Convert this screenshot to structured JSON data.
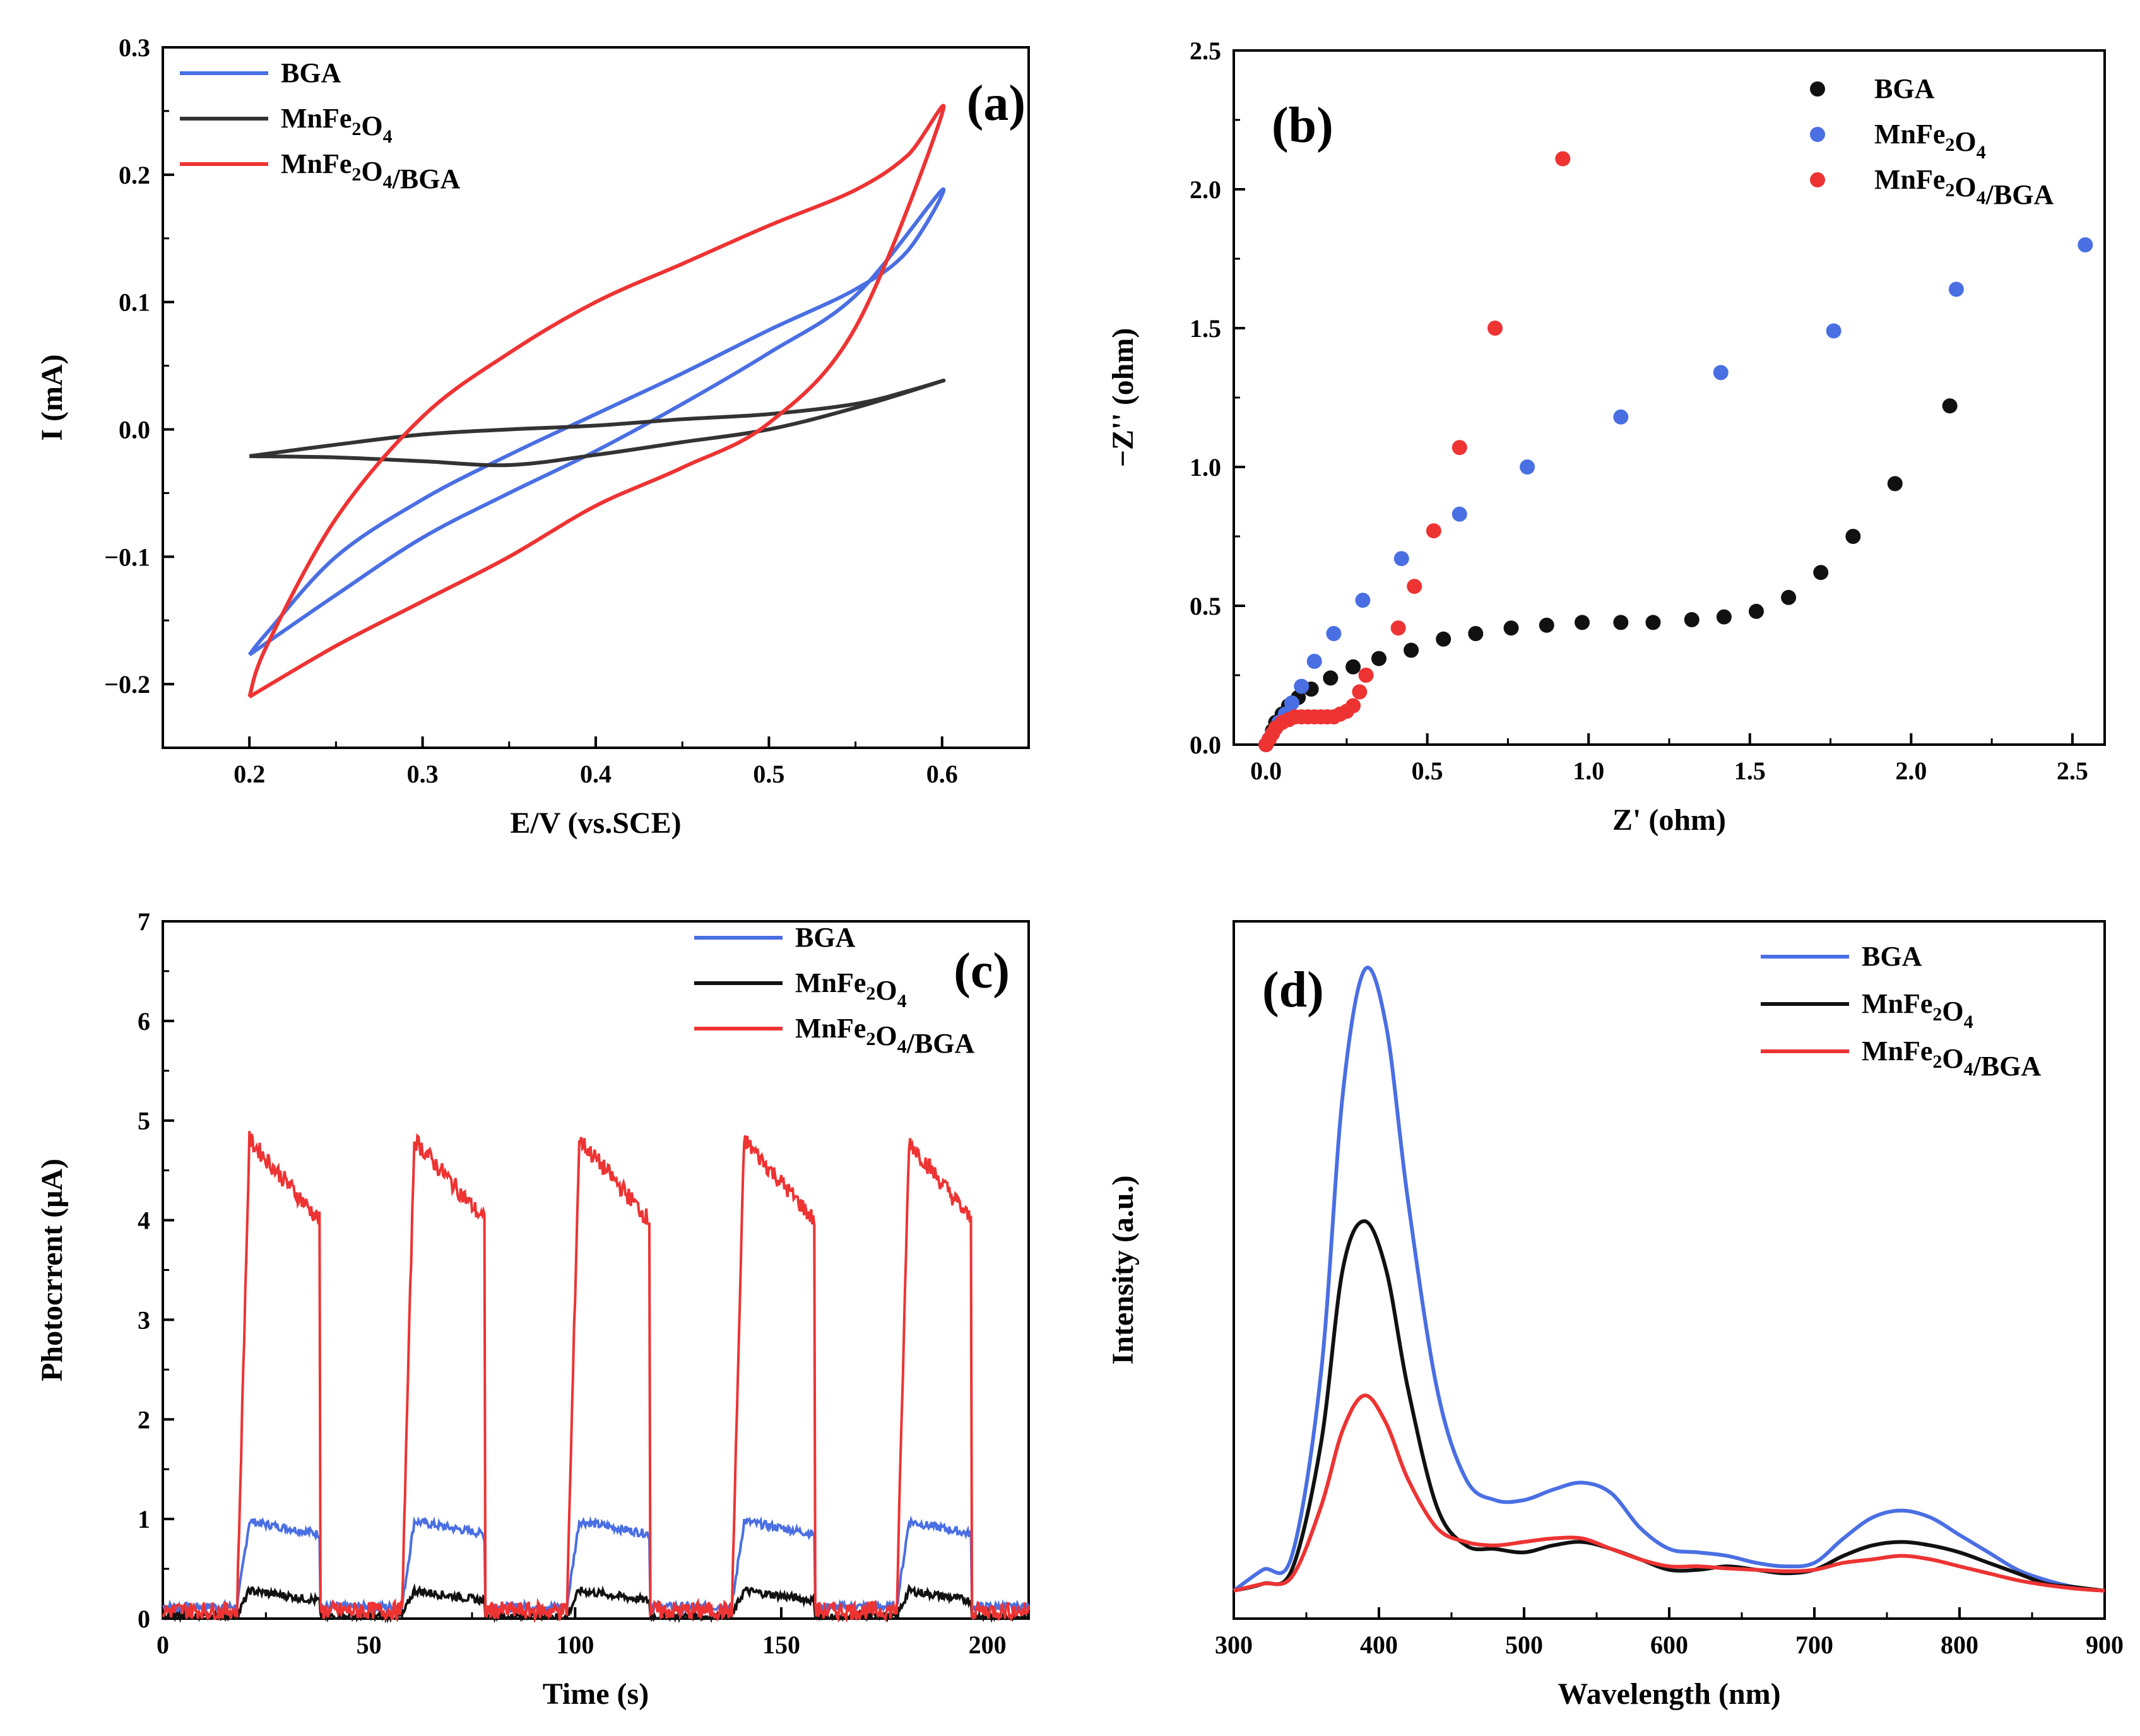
{
  "chart_data": [
    {
      "id": "a",
      "type": "line",
      "panel_label": "(a)",
      "xlabel": "E/V (vs.SCE)",
      "ylabel": "I (mA)",
      "xlim": [
        0.15,
        0.65
      ],
      "ylim": [
        -0.25,
        0.3
      ],
      "xticks": [
        0.2,
        0.3,
        0.4,
        0.5,
        0.6
      ],
      "xtick_labels": [
        "0.2",
        "0.3",
        "0.4",
        "0.5",
        "0.6"
      ],
      "yticks": [
        -0.2,
        -0.1,
        0.0,
        0.1,
        0.2,
        0.3
      ],
      "ytick_labels": [
        "−0.2",
        "−0.1",
        "0.0",
        "0.1",
        "0.2",
        "0.3"
      ],
      "legend": [
        {
          "label": "BGA",
          "color": "#4a6fe3"
        },
        {
          "label": "MnFe₂O₄",
          "color": "#333333"
        },
        {
          "label": "MnFe₂O₄/BGA",
          "color": "#ee3333"
        }
      ],
      "series": [
        {
          "name": "BGA",
          "color": "#4a6fe3",
          "x": [
            0.2,
            0.25,
            0.3,
            0.35,
            0.4,
            0.45,
            0.5,
            0.55,
            0.6,
            0.58,
            0.55,
            0.5,
            0.45,
            0.4,
            0.35,
            0.3,
            0.25,
            0.21,
            0.2
          ],
          "y": [
            -0.177,
            -0.13,
            -0.085,
            -0.05,
            -0.017,
            0.02,
            0.06,
            0.105,
            0.188,
            0.14,
            0.11,
            0.078,
            0.044,
            0.012,
            -0.02,
            -0.055,
            -0.1,
            -0.16,
            -0.177
          ]
        },
        {
          "name": "MnFe₂O₄",
          "color": "#333333",
          "x": [
            0.2,
            0.25,
            0.3,
            0.35,
            0.4,
            0.45,
            0.5,
            0.55,
            0.6,
            0.58,
            0.55,
            0.5,
            0.45,
            0.4,
            0.35,
            0.3,
            0.25,
            0.2
          ],
          "y": [
            -0.021,
            -0.022,
            -0.025,
            -0.028,
            -0.02,
            -0.01,
            0.0,
            0.017,
            0.038,
            0.03,
            0.02,
            0.012,
            0.008,
            0.003,
            0.0,
            -0.004,
            -0.012,
            -0.021
          ]
        },
        {
          "name": "MnFe₂O₄/BGA",
          "color": "#ee3333",
          "x": [
            0.2,
            0.25,
            0.3,
            0.35,
            0.4,
            0.45,
            0.5,
            0.55,
            0.6,
            0.58,
            0.55,
            0.5,
            0.45,
            0.4,
            0.35,
            0.3,
            0.25,
            0.21,
            0.2
          ],
          "y": [
            -0.21,
            -0.17,
            -0.135,
            -0.1,
            -0.06,
            -0.03,
            0.005,
            0.08,
            0.248,
            0.215,
            0.188,
            0.16,
            0.13,
            0.1,
            0.06,
            0.01,
            -0.07,
            -0.17,
            -0.21
          ]
        }
      ]
    },
    {
      "id": "b",
      "type": "scatter",
      "panel_label": "(b)",
      "xlabel": "Z' (ohm)",
      "ylabel": "−Z'' (ohm)",
      "xlim": [
        -0.1,
        2.6
      ],
      "ylim": [
        0.0,
        2.5
      ],
      "xticks": [
        0.0,
        0.5,
        1.0,
        1.5,
        2.0,
        2.5
      ],
      "xtick_labels": [
        "0.0",
        "0.5",
        "1.0",
        "1.5",
        "2.0",
        "2.5"
      ],
      "yticks": [
        0.0,
        0.5,
        1.0,
        1.5,
        2.0,
        2.5
      ],
      "ytick_labels": [
        "0.0",
        "0.5",
        "1.0",
        "1.5",
        "2.0",
        "2.5"
      ],
      "legend": [
        {
          "label": "BGA",
          "color": "#111111"
        },
        {
          "label": "MnFe₂O₄",
          "color": "#4a6fe3"
        },
        {
          "label": "MnFe₂O₄/BGA",
          "color": "#ee3333"
        }
      ],
      "series": [
        {
          "name": "BGA",
          "color": "#111111",
          "x": [
            0.0,
            0.01,
            0.02,
            0.03,
            0.05,
            0.07,
            0.1,
            0.14,
            0.2,
            0.27,
            0.35,
            0.45,
            0.55,
            0.65,
            0.76,
            0.87,
            0.98,
            1.1,
            1.2,
            1.32,
            1.42,
            1.52,
            1.62,
            1.72,
            1.82,
            1.95,
            2.12
          ],
          "y": [
            0.0,
            0.02,
            0.05,
            0.08,
            0.11,
            0.14,
            0.17,
            0.2,
            0.24,
            0.28,
            0.31,
            0.34,
            0.38,
            0.4,
            0.42,
            0.43,
            0.44,
            0.44,
            0.44,
            0.45,
            0.46,
            0.48,
            0.53,
            0.62,
            0.75,
            0.94,
            1.22
          ]
        },
        {
          "name": "MnFe₂O₄",
          "color": "#4a6fe3",
          "x": [
            0.0,
            0.01,
            0.02,
            0.03,
            0.04,
            0.06,
            0.08,
            0.11,
            0.15,
            0.21,
            0.3,
            0.42,
            0.6,
            0.81,
            1.1,
            1.41,
            1.76,
            2.14,
            2.54
          ],
          "y": [
            0.0,
            0.02,
            0.04,
            0.06,
            0.08,
            0.11,
            0.15,
            0.21,
            0.3,
            0.4,
            0.52,
            0.67,
            0.83,
            1.0,
            1.18,
            1.34,
            1.49,
            1.64,
            1.8
          ]
        },
        {
          "name": "MnFe₂O₄/BGA",
          "color": "#ee3333",
          "x": [
            0.0,
            0.01,
            0.02,
            0.03,
            0.05,
            0.07,
            0.09,
            0.11,
            0.13,
            0.15,
            0.17,
            0.19,
            0.21,
            0.23,
            0.25,
            0.27,
            0.29,
            0.31,
            0.41,
            0.46,
            0.52,
            0.6,
            0.71,
            0.92
          ],
          "y": [
            0.0,
            0.02,
            0.04,
            0.06,
            0.08,
            0.09,
            0.1,
            0.1,
            0.1,
            0.1,
            0.1,
            0.1,
            0.1,
            0.11,
            0.12,
            0.14,
            0.19,
            0.25,
            0.42,
            0.57,
            0.77,
            1.07,
            1.5,
            2.11
          ]
        }
      ]
    },
    {
      "id": "c",
      "type": "line",
      "panel_label": "(c)",
      "xlabel": "Time (s)",
      "ylabel": "Photocrrent (μA)",
      "xlim": [
        0,
        210
      ],
      "ylim": [
        0,
        7
      ],
      "xticks": [
        0,
        50,
        100,
        150,
        200
      ],
      "xtick_labels": [
        "0",
        "50",
        "100",
        "150",
        "200"
      ],
      "yticks": [
        0,
        1,
        2,
        3,
        4,
        5,
        6,
        7
      ],
      "ytick_labels": [
        "0",
        "1",
        "2",
        "3",
        "4",
        "5",
        "6",
        "7"
      ],
      "legend": [
        {
          "label": "BGA",
          "color": "#4a6fe3"
        },
        {
          "label": "MnFe₂O₄",
          "color": "#111111"
        },
        {
          "label": "MnFe₂O₄/BGA",
          "color": "#ee3333"
        }
      ],
      "pulses_on": [
        [
          18,
          38
        ],
        [
          58,
          78
        ],
        [
          98,
          118
        ],
        [
          138,
          158
        ],
        [
          178,
          196
        ]
      ],
      "series": [
        {
          "name": "BGA",
          "color": "#4a6fe3",
          "baseline": 0.12,
          "peak": 1.0,
          "plateau_end": 0.85
        },
        {
          "name": "MnFe₂O₄",
          "color": "#111111",
          "baseline": 0.02,
          "peak": 0.3,
          "plateau_end": 0.18
        },
        {
          "name": "MnFe₂O₄/BGA",
          "color": "#ee3333",
          "baseline": 0.08,
          "peak": 4.95,
          "plateau_end": 4.0
        }
      ]
    },
    {
      "id": "d",
      "type": "line",
      "panel_label": "(d)",
      "xlabel": "Wavelength (nm)",
      "ylabel": "Intensity (a.u.)",
      "xlim": [
        300,
        900
      ],
      "ylim": [
        0,
        1.0
      ],
      "xticks": [
        300,
        400,
        500,
        600,
        700,
        800,
        900
      ],
      "xtick_labels": [
        "300",
        "400",
        "500",
        "600",
        "700",
        "800",
        "900"
      ],
      "yticks": [],
      "ytick_labels": [],
      "legend": [
        {
          "label": "BGA",
          "color": "#4a6fe3"
        },
        {
          "label": "MnFe₂O₄",
          "color": "#111111"
        },
        {
          "label": "MnFe₂O₄/BGA",
          "color": "#ee3333"
        }
      ],
      "series": [
        {
          "name": "BGA",
          "color": "#4a6fe3",
          "x": [
            300,
            320,
            340,
            360,
            375,
            390,
            405,
            420,
            440,
            460,
            480,
            500,
            520,
            540,
            560,
            580,
            600,
            620,
            640,
            660,
            680,
            700,
            720,
            740,
            760,
            780,
            800,
            820,
            840,
            860,
            880,
            900
          ],
          "y": [
            0.04,
            0.07,
            0.09,
            0.35,
            0.75,
            0.93,
            0.85,
            0.6,
            0.33,
            0.2,
            0.17,
            0.17,
            0.185,
            0.195,
            0.18,
            0.13,
            0.1,
            0.095,
            0.09,
            0.08,
            0.075,
            0.08,
            0.115,
            0.145,
            0.155,
            0.145,
            0.12,
            0.095,
            0.07,
            0.055,
            0.045,
            0.04
          ]
        },
        {
          "name": "MnFe₂O₄",
          "color": "#111111",
          "x": [
            300,
            320,
            340,
            360,
            375,
            390,
            405,
            420,
            440,
            460,
            480,
            500,
            520,
            540,
            560,
            580,
            600,
            620,
            640,
            660,
            680,
            700,
            720,
            740,
            760,
            780,
            800,
            820,
            840,
            860,
            880,
            900
          ],
          "y": [
            0.04,
            0.05,
            0.07,
            0.25,
            0.5,
            0.57,
            0.5,
            0.33,
            0.16,
            0.105,
            0.1,
            0.095,
            0.105,
            0.11,
            0.1,
            0.085,
            0.07,
            0.07,
            0.075,
            0.07,
            0.065,
            0.07,
            0.09,
            0.105,
            0.11,
            0.105,
            0.095,
            0.08,
            0.065,
            0.05,
            0.045,
            0.04
          ]
        },
        {
          "name": "MnFe₂O₄/BGA",
          "color": "#ee3333",
          "x": [
            300,
            320,
            340,
            360,
            375,
            390,
            405,
            420,
            440,
            460,
            480,
            500,
            520,
            540,
            560,
            580,
            600,
            620,
            640,
            660,
            680,
            700,
            720,
            740,
            760,
            780,
            800,
            820,
            840,
            860,
            880,
            900
          ],
          "y": [
            0.04,
            0.05,
            0.06,
            0.16,
            0.27,
            0.32,
            0.28,
            0.2,
            0.13,
            0.11,
            0.105,
            0.11,
            0.115,
            0.115,
            0.1,
            0.085,
            0.075,
            0.075,
            0.072,
            0.07,
            0.068,
            0.07,
            0.08,
            0.085,
            0.09,
            0.085,
            0.075,
            0.065,
            0.055,
            0.048,
            0.043,
            0.04
          ]
        }
      ]
    }
  ]
}
